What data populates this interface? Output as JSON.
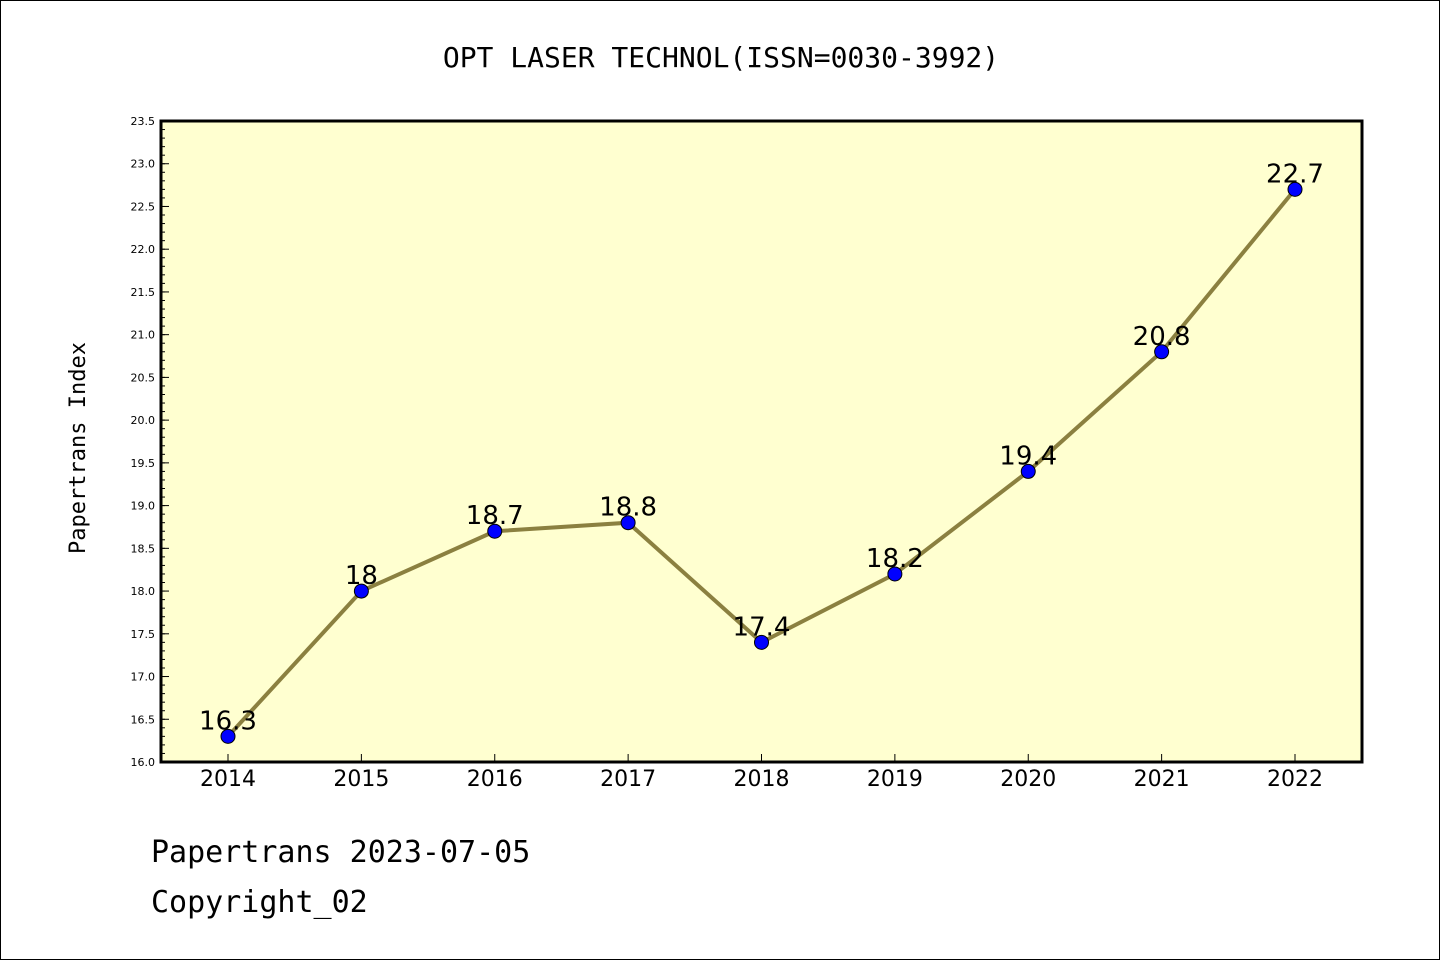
{
  "chart_data": {
    "type": "line",
    "title": "OPT LASER TECHNOL(ISSN=0030-3992)",
    "xlabel": "",
    "ylabel": "Papertrans Index",
    "categories": [
      "2014",
      "2015",
      "2016",
      "2017",
      "2018",
      "2019",
      "2020",
      "2021",
      "2022"
    ],
    "values": [
      16.3,
      18,
      18.7,
      18.8,
      17.4,
      18.2,
      19.4,
      20.8,
      22.7
    ],
    "data_labels": [
      "16.3",
      "18",
      "18.7",
      "18.8",
      "17.4",
      "18.2",
      "19.4",
      "20.8",
      "22.7"
    ],
    "ylim": [
      16.0,
      23.5
    ],
    "yticks": [
      "16.0",
      "16.5",
      "17.0",
      "17.5",
      "18.0",
      "18.5",
      "19.0",
      "19.5",
      "20.0",
      "20.5",
      "21.0",
      "21.5",
      "22.0",
      "22.5",
      "23.0",
      "23.5"
    ],
    "grid": false,
    "legend": "none",
    "colors": {
      "plot_background": "#ffffd0",
      "line": "#8b8040",
      "marker": "#0000ff"
    }
  },
  "footer": {
    "line1": "Papertrans 2023-07-05",
    "line2": "Copyright_02"
  }
}
